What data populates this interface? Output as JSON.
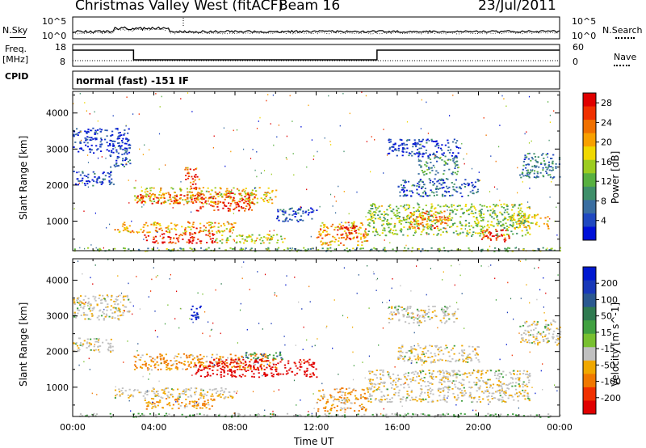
{
  "header": {
    "station": "Christmas Valley West (fitACF)",
    "beam": "Beam 16",
    "date": "23/Jul/2011"
  },
  "mini_panels": {
    "nsky_label": "N.Sky",
    "nsearch_label": "N.Search",
    "nsky_ticks": [
      "10^5",
      "10^0"
    ],
    "nsearch_ticks": [
      "10^5",
      "10^0"
    ],
    "freq_label_1": "Freq.",
    "freq_label_2": "[MHz]",
    "freq_ticks": [
      "18",
      "8"
    ],
    "nave_label": "Nave",
    "nave_ticks": [
      "60",
      "0"
    ],
    "cpid_label": "CPID",
    "mode_text": "normal (fast) -151 IF"
  },
  "colors": {
    "power": [
      "#0010d8",
      "#2048c0",
      "#3a6ea0",
      "#3f8f6a",
      "#58b040",
      "#9ccc20",
      "#f0d800",
      "#f8a000",
      "#f07000",
      "#f03000",
      "#e00000"
    ],
    "velocity": [
      "#0018d0",
      "#1838b8",
      "#2a5890",
      "#2f7a50",
      "#40a040",
      "#78c030",
      "#c0c0c0",
      "#f0a800",
      "#f07800",
      "#f03000",
      "#e00000"
    ]
  },
  "chart_data": [
    {
      "type": "heatmap",
      "name": "power-panel",
      "xlabel": "Time UT",
      "ylabel": "Slant Range [km]",
      "xlim": [
        0,
        24
      ],
      "ylim": [
        180,
        4600
      ],
      "x_ticks": [
        "00:00",
        "04:00",
        "08:00",
        "12:00",
        "16:00",
        "20:00",
        "00:00"
      ],
      "y_ticks": [
        1000,
        2000,
        3000,
        4000
      ],
      "colorbar_label": "Power [dB]",
      "colorbar_ticks": [
        "4",
        "8",
        "12",
        "16",
        "20",
        "24",
        "28"
      ],
      "blobs": [
        {
          "t0": 0.0,
          "t1": 2.8,
          "r0": 2900,
          "r1": 3600,
          "v": 3.5
        },
        {
          "t0": 1.8,
          "t1": 2.8,
          "r0": 2500,
          "r1": 3000,
          "v": 6
        },
        {
          "t0": 0.0,
          "t1": 2.0,
          "r0": 2000,
          "r1": 2400,
          "v": 4
        },
        {
          "t0": 3.0,
          "t1": 10.0,
          "r0": 1500,
          "r1": 1950,
          "v": 18
        },
        {
          "t0": 3.0,
          "t1": 6.0,
          "r0": 1500,
          "r1": 1750,
          "v": 26
        },
        {
          "t0": 6.0,
          "t1": 9.0,
          "r0": 1300,
          "r1": 1800,
          "v": 26
        },
        {
          "t0": 5.5,
          "t1": 6.2,
          "r0": 1900,
          "r1": 2500,
          "v": 25
        },
        {
          "t0": 2.0,
          "t1": 8.0,
          "r0": 700,
          "r1": 1000,
          "v": 20
        },
        {
          "t0": 3.5,
          "t1": 7.0,
          "r0": 400,
          "r1": 700,
          "v": 27
        },
        {
          "t0": 7.0,
          "t1": 10.5,
          "r0": 400,
          "r1": 650,
          "v": 16
        },
        {
          "t0": 10.0,
          "t1": 12.0,
          "r0": 1000,
          "r1": 1400,
          "v": 5
        },
        {
          "t0": 12.0,
          "t1": 14.5,
          "r0": 350,
          "r1": 1000,
          "v": 20
        },
        {
          "t0": 13.0,
          "t1": 14.0,
          "r0": 500,
          "r1": 900,
          "v": 27
        },
        {
          "t0": 14.5,
          "t1": 22.5,
          "r0": 600,
          "r1": 1500,
          "v": 14
        },
        {
          "t0": 16.0,
          "t1": 20.0,
          "r0": 1700,
          "r1": 2200,
          "v": 6
        },
        {
          "t0": 17.0,
          "t1": 19.0,
          "r0": 2300,
          "r1": 2800,
          "v": 10
        },
        {
          "t0": 16.5,
          "t1": 18.5,
          "r0": 800,
          "r1": 1300,
          "v": 22
        },
        {
          "t0": 20.0,
          "t1": 21.5,
          "r0": 450,
          "r1": 800,
          "v": 27
        },
        {
          "t0": 21.5,
          "t1": 23.5,
          "r0": 800,
          "r1": 1200,
          "v": 18
        },
        {
          "t0": 15.5,
          "t1": 19.0,
          "r0": 2800,
          "r1": 3300,
          "v": 4
        },
        {
          "t0": 22.0,
          "t1": 24.0,
          "r0": 2200,
          "r1": 2900,
          "v": 8
        },
        {
          "t0": 0.0,
          "t1": 24.0,
          "r0": 180,
          "r1": 280,
          "v": 12
        }
      ]
    },
    {
      "type": "heatmap",
      "name": "velocity-panel",
      "xlabel": "Time UT",
      "ylabel": "Slant Range [km]",
      "xlim": [
        0,
        24
      ],
      "ylim": [
        180,
        4600
      ],
      "x_ticks": [
        "00:00",
        "04:00",
        "08:00",
        "12:00",
        "16:00",
        "20:00",
        "00:00"
      ],
      "y_ticks": [
        1000,
        2000,
        3000,
        4000
      ],
      "colorbar_label": "Velocity [m s^-1]",
      "colorbar_ticks": [
        "200",
        "100",
        "50",
        "15",
        "-15",
        "-50",
        "-100",
        "-200"
      ],
      "blobs": [
        {
          "t0": 0.0,
          "t1": 2.8,
          "r0": 2900,
          "r1": 3600,
          "v": 0
        },
        {
          "t0": 0.0,
          "t1": 2.0,
          "r0": 2000,
          "r1": 2400,
          "v": 0
        },
        {
          "t0": 3.0,
          "t1": 10.0,
          "r0": 1500,
          "r1": 1950,
          "v": -40
        },
        {
          "t0": 6.0,
          "t1": 12.0,
          "r0": 1300,
          "r1": 1800,
          "v": -180
        },
        {
          "t0": 8.5,
          "t1": 10.5,
          "r0": 1800,
          "r1": 2000,
          "v": 60
        },
        {
          "t0": 2.0,
          "t1": 8.0,
          "r0": 700,
          "r1": 1000,
          "v": 0
        },
        {
          "t0": 3.5,
          "t1": 7.0,
          "r0": 400,
          "r1": 700,
          "v": -40
        },
        {
          "t0": 5.8,
          "t1": 6.3,
          "r0": 2900,
          "r1": 3300,
          "v": 180
        },
        {
          "t0": 12.0,
          "t1": 14.5,
          "r0": 350,
          "r1": 1000,
          "v": -30
        },
        {
          "t0": 14.5,
          "t1": 22.5,
          "r0": 600,
          "r1": 1500,
          "v": 0
        },
        {
          "t0": 16.0,
          "t1": 20.0,
          "r0": 1700,
          "r1": 2200,
          "v": 0
        },
        {
          "t0": 15.5,
          "t1": 19.0,
          "r0": 2800,
          "r1": 3300,
          "v": 0
        },
        {
          "t0": 22.0,
          "t1": 24.0,
          "r0": 2200,
          "r1": 2900,
          "v": 0
        },
        {
          "t0": 0.0,
          "t1": 24.0,
          "r0": 180,
          "r1": 280,
          "v": 30
        }
      ]
    }
  ]
}
